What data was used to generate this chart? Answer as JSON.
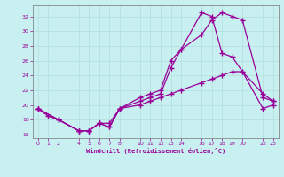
{
  "xlabel": "Windchill (Refroidissement éolien,°C)",
  "bg_color": "#c8f0f0",
  "line_color": "#990099",
  "grid_color": "#b0dede",
  "xlim": [
    -0.5,
    23.5
  ],
  "ylim": [
    15.5,
    33.5
  ],
  "xticks": [
    0,
    1,
    2,
    4,
    5,
    6,
    7,
    8,
    10,
    11,
    12,
    13,
    14,
    16,
    17,
    18,
    19,
    20,
    22,
    23
  ],
  "yticks": [
    16,
    18,
    20,
    22,
    24,
    26,
    28,
    30,
    32
  ],
  "curve1_x": [
    0,
    1,
    2,
    4,
    5,
    6,
    7,
    8,
    10,
    11,
    12,
    13,
    14,
    16,
    17,
    18,
    19,
    20,
    22,
    23
  ],
  "curve1_y": [
    19.5,
    18.5,
    18.0,
    16.5,
    16.5,
    17.5,
    17.5,
    19.5,
    20.5,
    21.0,
    21.5,
    25.0,
    27.5,
    29.5,
    31.5,
    32.5,
    32.0,
    31.5,
    21.0,
    20.5
  ],
  "curve2_x": [
    0,
    2,
    4,
    5,
    6,
    7,
    8,
    10,
    11,
    12,
    13,
    14,
    16,
    17,
    18,
    19,
    20,
    22,
    23
  ],
  "curve2_y": [
    19.5,
    18.0,
    16.5,
    16.5,
    17.5,
    17.0,
    19.5,
    21.0,
    21.5,
    22.0,
    26.0,
    27.5,
    32.5,
    32.0,
    27.0,
    26.5,
    24.5,
    21.5,
    20.5
  ],
  "curve3_x": [
    0,
    2,
    4,
    5,
    6,
    7,
    8,
    10,
    11,
    12,
    13,
    14,
    16,
    17,
    18,
    19,
    20,
    22,
    23
  ],
  "curve3_y": [
    19.5,
    18.0,
    16.5,
    16.5,
    17.5,
    17.0,
    19.5,
    20.0,
    20.5,
    21.0,
    21.5,
    22.0,
    23.0,
    23.5,
    24.0,
    24.5,
    24.5,
    19.5,
    20.0
  ]
}
